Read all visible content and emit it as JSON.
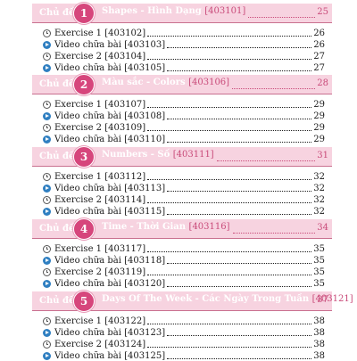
{
  "chu_de_label": "Chủ đề",
  "colors": {
    "header_bg": "#f7d3e0",
    "badge": "#d6467c",
    "accent_text": "#c94b7a",
    "video_icon": "#2f7fc1"
  },
  "chapters": [
    {
      "num": "1",
      "title": "Shapes - Hình Dạng",
      "code": "[403101]",
      "page": "25",
      "items": [
        {
          "icon": "clock-icon",
          "label": "Exercise 1 [403102]",
          "page": "26"
        },
        {
          "icon": "play-icon",
          "label": "Video chữa bài [403103]",
          "page": "26"
        },
        {
          "icon": "clock-icon",
          "label": "Exercise 2 [403104]",
          "page": "27"
        },
        {
          "icon": "play-icon",
          "label": "Video chữa bài [403105]",
          "page": "27"
        }
      ]
    },
    {
      "num": "2",
      "title": "Màu sắc - Colors",
      "code": "[403106]",
      "page": "28",
      "items": [
        {
          "icon": "clock-icon",
          "label": "Exercise 1 [403107]",
          "page": "29"
        },
        {
          "icon": "play-icon",
          "label": "Video chữa bài [403108]",
          "page": "29"
        },
        {
          "icon": "clock-icon",
          "label": "Exercise 2 [403109]",
          "page": "29"
        },
        {
          "icon": "play-icon",
          "label": "Video chữa bài [403110]",
          "page": "29"
        }
      ]
    },
    {
      "num": "3",
      "title": "Numbers - Số",
      "code": "[403111]",
      "page": "31",
      "items": [
        {
          "icon": "clock-icon",
          "label": "Exercise 1 [403112]",
          "page": "32"
        },
        {
          "icon": "play-icon",
          "label": "Video chữa bài [403113]",
          "page": "32"
        },
        {
          "icon": "clock-icon",
          "label": "Exercise 2 [403114]",
          "page": "32"
        },
        {
          "icon": "play-icon",
          "label": "Video chữa bài [403115]",
          "page": "32"
        }
      ]
    },
    {
      "num": "4",
      "title": "Time - Thời Gian",
      "code": "[403116]",
      "page": "34",
      "items": [
        {
          "icon": "clock-icon",
          "label": "Exercise 1 [403117]",
          "page": "35"
        },
        {
          "icon": "play-icon",
          "label": "Video chữa bài [403118]",
          "page": "35"
        },
        {
          "icon": "clock-icon",
          "label": "Exercise 2 [403119]",
          "page": "35"
        },
        {
          "icon": "play-icon",
          "label": "Video chữa bài [403120]",
          "page": "35"
        }
      ]
    },
    {
      "num": "5",
      "title": "Days Of The Week - Các Ngày Trong Tuần",
      "code": "[403121]",
      "page": "37",
      "items": [
        {
          "icon": "clock-icon",
          "label": "Exercise 1 [403122]",
          "page": "38"
        },
        {
          "icon": "play-icon",
          "label": "Video chữa bài [403123]",
          "page": "38"
        },
        {
          "icon": "clock-icon",
          "label": "Exercise 2 [403124]",
          "page": "38"
        },
        {
          "icon": "play-icon",
          "label": "Video chữa bài [403125]",
          "page": "38"
        }
      ]
    }
  ]
}
